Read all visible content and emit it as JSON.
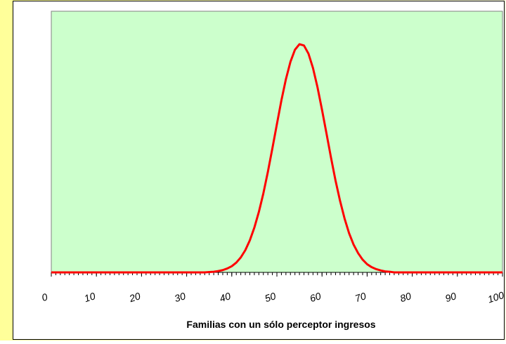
{
  "chart_data": {
    "type": "line",
    "x_label": "Familias con un sólo perceptor ingresos",
    "x": [
      0,
      1,
      2,
      3,
      4,
      5,
      6,
      7,
      8,
      9,
      10,
      11,
      12,
      13,
      14,
      15,
      16,
      17,
      18,
      19,
      20,
      21,
      22,
      23,
      24,
      25,
      26,
      27,
      28,
      29,
      30,
      31,
      32,
      33,
      34,
      35,
      36,
      37,
      38,
      39,
      40,
      41,
      42,
      43,
      44,
      45,
      46,
      47,
      48,
      49,
      50,
      51,
      52,
      53,
      54,
      55,
      56,
      57,
      58,
      59,
      60,
      61,
      62,
      63,
      64,
      65,
      66,
      67,
      68,
      69,
      70,
      71,
      72,
      73,
      74,
      75,
      76,
      77,
      78,
      79,
      80,
      81,
      82,
      83,
      84,
      85,
      86,
      87,
      88,
      89,
      90,
      91,
      92,
      93,
      94,
      95,
      96,
      97,
      98,
      99,
      100
    ],
    "series": [
      {
        "color": "#ff0000",
        "values": [
          0,
          0,
          0,
          0,
          0,
          0,
          0,
          0,
          0,
          0,
          0,
          0,
          0,
          0,
          0,
          0,
          0,
          0,
          0,
          0,
          0,
          0,
          0,
          0,
          0,
          0,
          0,
          0,
          0,
          0,
          0,
          0,
          0,
          0,
          0,
          0.0001,
          0.0002,
          0.0004,
          0.0007,
          0.0012,
          0.0019,
          0.003,
          0.0046,
          0.0068,
          0.0098,
          0.0137,
          0.0185,
          0.0242,
          0.0308,
          0.038,
          0.0454,
          0.0527,
          0.0592,
          0.0645,
          0.0682,
          0.0699,
          0.0695,
          0.067,
          0.0626,
          0.0567,
          0.0498,
          0.0425,
          0.0351,
          0.0281,
          0.0219,
          0.0165,
          0.012,
          0.0085,
          0.0059,
          0.0039,
          0.0025,
          0.0016,
          0.001,
          0.0006,
          0.0003,
          0.0002,
          0,
          0,
          0,
          0,
          0,
          0,
          0,
          0,
          0,
          0,
          0,
          0,
          0,
          0,
          0,
          0,
          0,
          0,
          0,
          0,
          0,
          0,
          0,
          0,
          0
        ]
      }
    ],
    "xlim": [
      0,
      100
    ],
    "xticks": [
      0,
      10,
      20,
      30,
      40,
      50,
      60,
      70,
      80,
      90,
      100
    ],
    "ylim": [
      0,
      0.08
    ],
    "plot_color": "#ccffcc"
  }
}
